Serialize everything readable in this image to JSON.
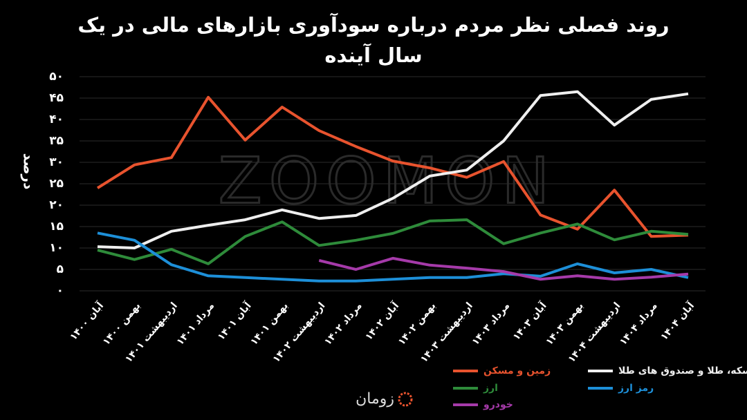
{
  "chart_data": {
    "type": "line",
    "title": "روند فصلی نظر مردم درباره سودآوری بازارهای مالی در یک سال آینده",
    "y_label": "درصد",
    "watermark": "ZOOMON",
    "brand": "زومان",
    "categories": [
      "آبان ۱۴۰۰",
      "بهمن ۱۴۰۰",
      "اردیبهشت ۱۴۰۱",
      "مرداد ۱۴۰۱",
      "آبان ۱۴۰۱",
      "بهمن ۱۴۰۱",
      "اردیبهشت ۱۴۰۲",
      "مرداد ۱۴۰۲",
      "آبان ۱۴۰۲",
      "بهمن ۱۴۰۲",
      "اردیبهشت ۱۴۰۳",
      "مرداد ۱۴۰۳",
      "آبان ۱۴۰۳",
      "بهمن ۱۴۰۳",
      "اردیبهشت ۱۴۰۴",
      "مرداد ۱۴۰۴",
      "آبان ۱۴۰۴"
    ],
    "series": [
      {
        "name": "زمین و مسکن",
        "color": "#e8532e",
        "values": [
          24,
          29.4,
          31.1,
          45.2,
          35.2,
          42.9,
          37.4,
          33.7,
          30.3,
          28.7,
          26.5,
          30.2,
          17.7,
          14.4,
          23.5,
          12.7,
          13
        ]
      },
      {
        "name": "سکه، طلا و صندوق های طلا",
        "color": "#efefef",
        "values": [
          10.3,
          10,
          13.9,
          15.3,
          16.6,
          18.9,
          16.9,
          17.6,
          21.6,
          26.8,
          28.2,
          35,
          45.6,
          46.5,
          38.7,
          44.7,
          46
        ]
      },
      {
        "name": "ارز",
        "color": "#2e8b3a",
        "values": [
          9.5,
          7.3,
          9.7,
          6.3,
          12.7,
          16.1,
          10.6,
          11.8,
          13.4,
          16.3,
          16.6,
          11,
          13.5,
          15.6,
          11.9,
          13.9,
          13.2
        ]
      },
      {
        "name": "رمز ارز",
        "color": "#1d8fd8",
        "values": [
          13.5,
          11.8,
          6.1,
          3.5,
          3.1,
          2.7,
          2.3,
          2.3,
          2.7,
          3.1,
          3.1,
          4,
          3.4,
          6.3,
          4.2,
          5,
          3.1
        ]
      },
      {
        "name": "خودرو",
        "color": "#a53aa9",
        "values": [
          null,
          null,
          null,
          null,
          null,
          null,
          7.1,
          5,
          7.6,
          6,
          5.3,
          4.5,
          2.7,
          3.5,
          2.7,
          3.2,
          3.9
        ]
      }
    ],
    "ylim": [
      0,
      50
    ],
    "yticks": [
      {
        "value": 0,
        "label": "۰"
      },
      {
        "value": 5,
        "label": "۵"
      },
      {
        "value": 10,
        "label": "۱۰"
      },
      {
        "value": 15,
        "label": "۱۵"
      },
      {
        "value": 20,
        "label": "۲۰"
      },
      {
        "value": 25,
        "label": "۲۵"
      },
      {
        "value": 30,
        "label": "۳۰"
      },
      {
        "value": 35,
        "label": "۳۵"
      },
      {
        "value": 40,
        "label": "۴۰"
      },
      {
        "value": 45,
        "label": "۴۵"
      },
      {
        "value": 50,
        "label": "۵۰"
      }
    ],
    "grid": true
  }
}
